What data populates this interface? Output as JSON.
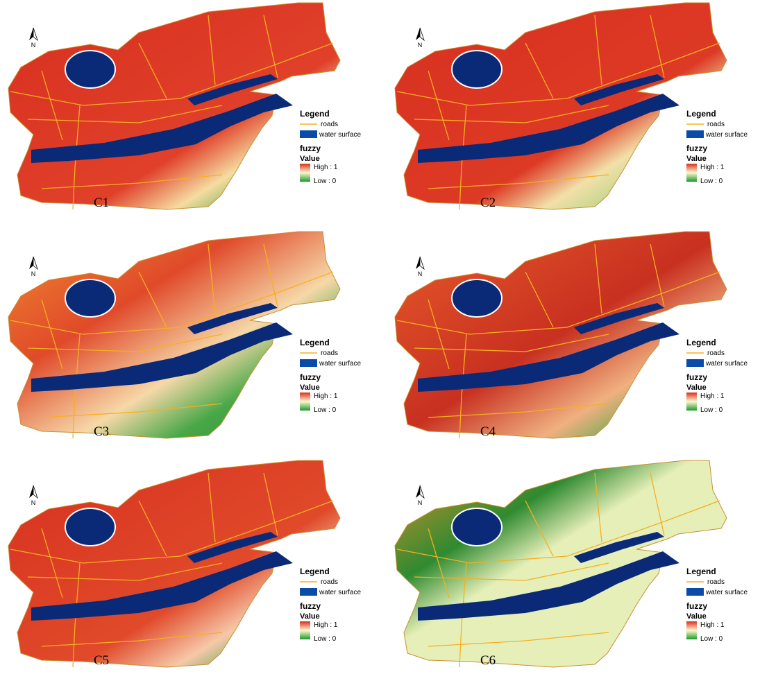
{
  "panels": [
    {
      "label": "C1",
      "north": "N",
      "legend": {
        "title": "Legend",
        "roads": "roads",
        "water": "water surface",
        "fuzzy": "fuzzy",
        "value": "Value",
        "high": "High : 1",
        "low": "Low : 0"
      }
    },
    {
      "label": "C2",
      "north": "N",
      "legend": {
        "title": "Legend",
        "roads": "roads",
        "water": "water surface",
        "fuzzy": "fuzzy",
        "value": "Value",
        "high": "High : 1",
        "low": "Low : 0"
      }
    },
    {
      "label": "C3",
      "north": "N",
      "legend": {
        "title": "Legend",
        "roads": "roads",
        "water": "water surface",
        "fuzzy": "fuzzy",
        "value": "Value",
        "high": "High : 1",
        "low": "Low : 0"
      }
    },
    {
      "label": "C4",
      "north": "N",
      "legend": {
        "title": "Legend",
        "roads": "roads",
        "water": "water surface",
        "fuzzy": "fuzzy",
        "value": "Value",
        "high": "High : 1",
        "low": "Low : 0"
      }
    },
    {
      "label": "C5",
      "north": "N",
      "legend": {
        "title": "Legend",
        "roads": "roads",
        "water": "water surface",
        "fuzzy": "fuzzy",
        "value": "Value",
        "high": "High : 1",
        "low": "Low : 0"
      }
    },
    {
      "label": "C6",
      "north": "N",
      "legend": {
        "title": "Legend",
        "roads": "roads",
        "water": "water surface",
        "fuzzy": "fuzzy",
        "value": "Value",
        "high": "High : 1",
        "low": "Low : 0"
      }
    }
  ]
}
